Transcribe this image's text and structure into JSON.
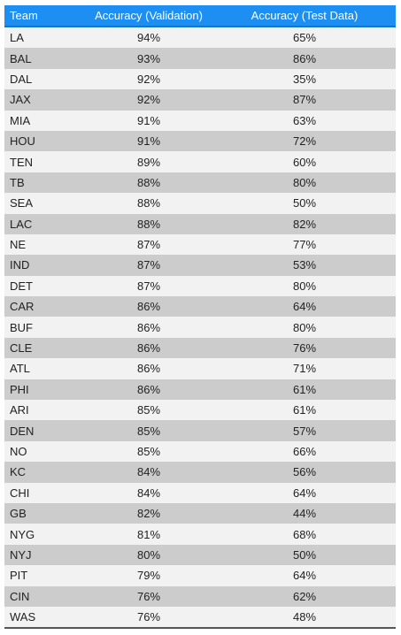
{
  "chart_data": {
    "type": "table",
    "columns": [
      "Team",
      "Accuracy (Validation)",
      "Accuracy (Test Data)"
    ],
    "rows": [
      [
        "LA",
        "94%",
        "65%"
      ],
      [
        "BAL",
        "93%",
        "86%"
      ],
      [
        "DAL",
        "92%",
        "35%"
      ],
      [
        "JAX",
        "92%",
        "87%"
      ],
      [
        "MIA",
        "91%",
        "63%"
      ],
      [
        "HOU",
        "91%",
        "72%"
      ],
      [
        "TEN",
        "89%",
        "60%"
      ],
      [
        "TB",
        "88%",
        "80%"
      ],
      [
        "SEA",
        "88%",
        "50%"
      ],
      [
        "LAC",
        "88%",
        "82%"
      ],
      [
        "NE",
        "87%",
        "77%"
      ],
      [
        "IND",
        "87%",
        "53%"
      ],
      [
        "DET",
        "87%",
        "80%"
      ],
      [
        "CAR",
        "86%",
        "64%"
      ],
      [
        "BUF",
        "86%",
        "80%"
      ],
      [
        "CLE",
        "86%",
        "76%"
      ],
      [
        "ATL",
        "86%",
        "71%"
      ],
      [
        "PHI",
        "86%",
        "61%"
      ],
      [
        "ARI",
        "85%",
        "61%"
      ],
      [
        "DEN",
        "85%",
        "57%"
      ],
      [
        "NO",
        "85%",
        "66%"
      ],
      [
        "KC",
        "84%",
        "56%"
      ],
      [
        "CHI",
        "84%",
        "64%"
      ],
      [
        "GB",
        "82%",
        "44%"
      ],
      [
        "NYG",
        "81%",
        "68%"
      ],
      [
        "NYJ",
        "80%",
        "50%"
      ],
      [
        "PIT",
        "79%",
        "64%"
      ],
      [
        "CIN",
        "76%",
        "62%"
      ],
      [
        "WAS",
        "76%",
        "48%"
      ]
    ]
  },
  "colors": {
    "header_background": "#1e8ff2",
    "header_text": "#ffffff",
    "row_light": "#f2f2f2",
    "row_dark": "#cccccc"
  }
}
